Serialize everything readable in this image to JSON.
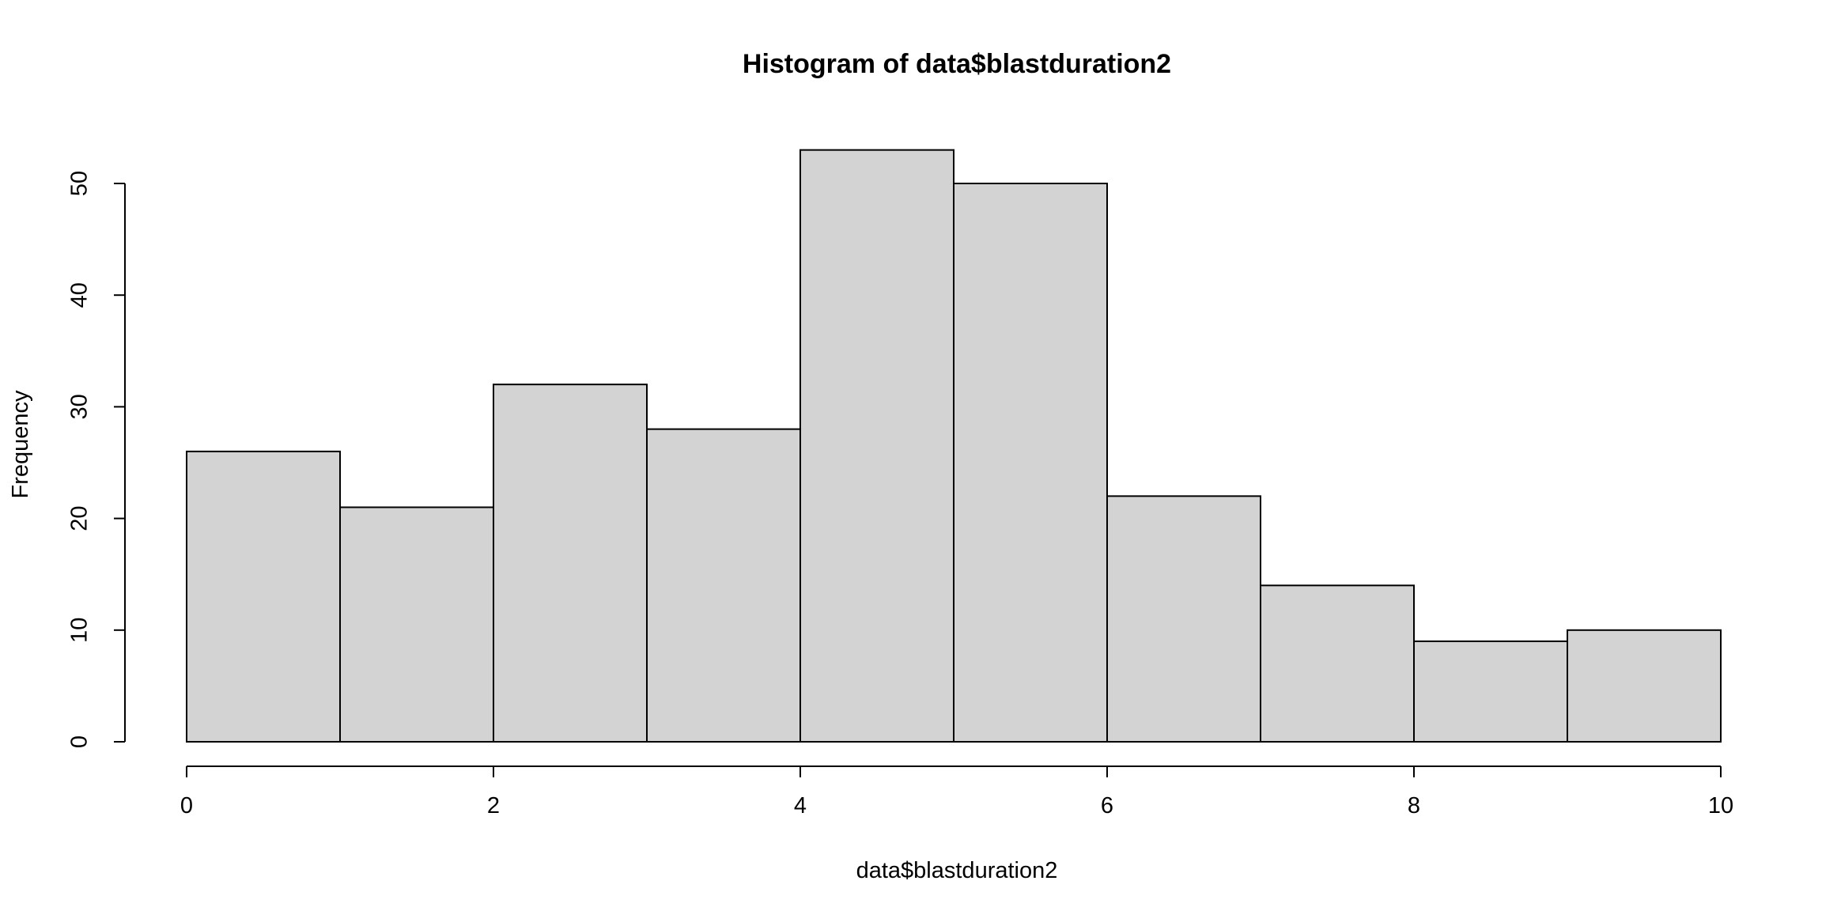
{
  "chart_data": {
    "type": "bar",
    "subtype": "histogram",
    "title": "Histogram of data$blastduration2",
    "xlabel": "data$blastduration2",
    "ylabel": "Frequency",
    "bin_edges": [
      0,
      1,
      2,
      3,
      4,
      5,
      6,
      7,
      8,
      9,
      10
    ],
    "values": [
      26,
      21,
      32,
      28,
      53,
      50,
      22,
      14,
      9,
      10
    ],
    "xlim": [
      0,
      10
    ],
    "ylim": [
      0,
      55
    ],
    "x_ticks": [
      0,
      2,
      4,
      6,
      8,
      10
    ],
    "x_tick_labels": [
      "0",
      "2",
      "4",
      "6",
      "8",
      "10"
    ],
    "y_ticks": [
      0,
      10,
      20,
      30,
      40,
      50
    ],
    "y_tick_labels": [
      "0",
      "10",
      "20",
      "30",
      "40",
      "50"
    ],
    "bar_color": "#d3d3d3",
    "border_color": "#000000",
    "grid": false,
    "legend": "none"
  }
}
